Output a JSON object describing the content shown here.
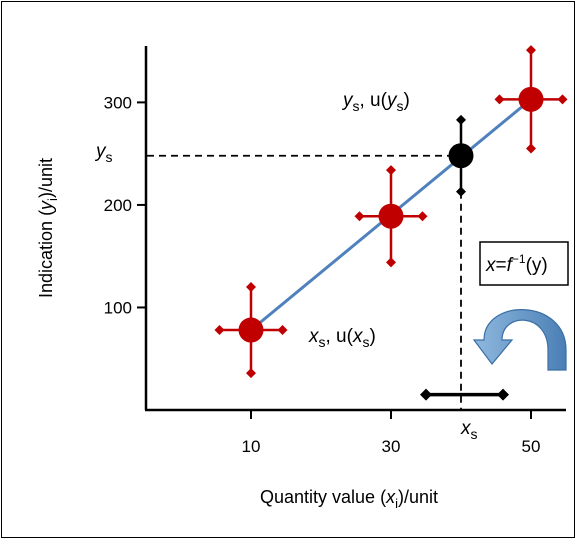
{
  "chart_data": {
    "type": "scatter",
    "xlabel": {
      "base": "Quantity value (",
      "var": "x",
      "sub": "i",
      "rest": ")/unit"
    },
    "ylabel": {
      "base": "Indication (",
      "var": "y",
      "sub": "i",
      "rest": ")/unit"
    },
    "xlim": [
      -5,
      55
    ],
    "ylim": [
      0,
      355
    ],
    "x_ticks": [
      10,
      30,
      50
    ],
    "y_ticks": [
      100,
      200,
      300
    ],
    "line": {
      "x": [
        10,
        50
      ],
      "y": [
        78,
        303
      ],
      "color": "#4f81bd"
    },
    "points": [
      {
        "x": 10,
        "y": 78,
        "xerr": 4.5,
        "yerr": 42,
        "color": "#c00000"
      },
      {
        "x": 30,
        "y": 189,
        "xerr": 4.5,
        "yerr": 45,
        "color": "#c00000"
      },
      {
        "x": 50,
        "y": 303,
        "xerr": 4.5,
        "yerr": 48,
        "color": "#c00000"
      }
    ],
    "calibration_point": {
      "x": 40,
      "y": 248,
      "yerr": 35,
      "color": "#000000"
    },
    "xs_interval": {
      "x_low": 35,
      "x_high": 46,
      "y": 15
    },
    "ys_label": {
      "var": "y",
      "sub": "s"
    },
    "xs_label": {
      "var": "x",
      "sub": "s"
    },
    "annotations": {
      "ys_uys": {
        "v": "y",
        "s": "s",
        "mid": ", u(",
        "v2": "y",
        "s2": "s",
        "end": ")"
      },
      "xs_uxs": {
        "v": "x",
        "s": "s",
        "mid": ", u(",
        "v2": "x",
        "s2": "s",
        "end": ")"
      },
      "inverse_box": {
        "pre": "x",
        "eq": "=",
        "f": "f",
        "sup": "−1",
        "arg": "(y)"
      }
    },
    "arrow_color": "#6fa8dc"
  }
}
